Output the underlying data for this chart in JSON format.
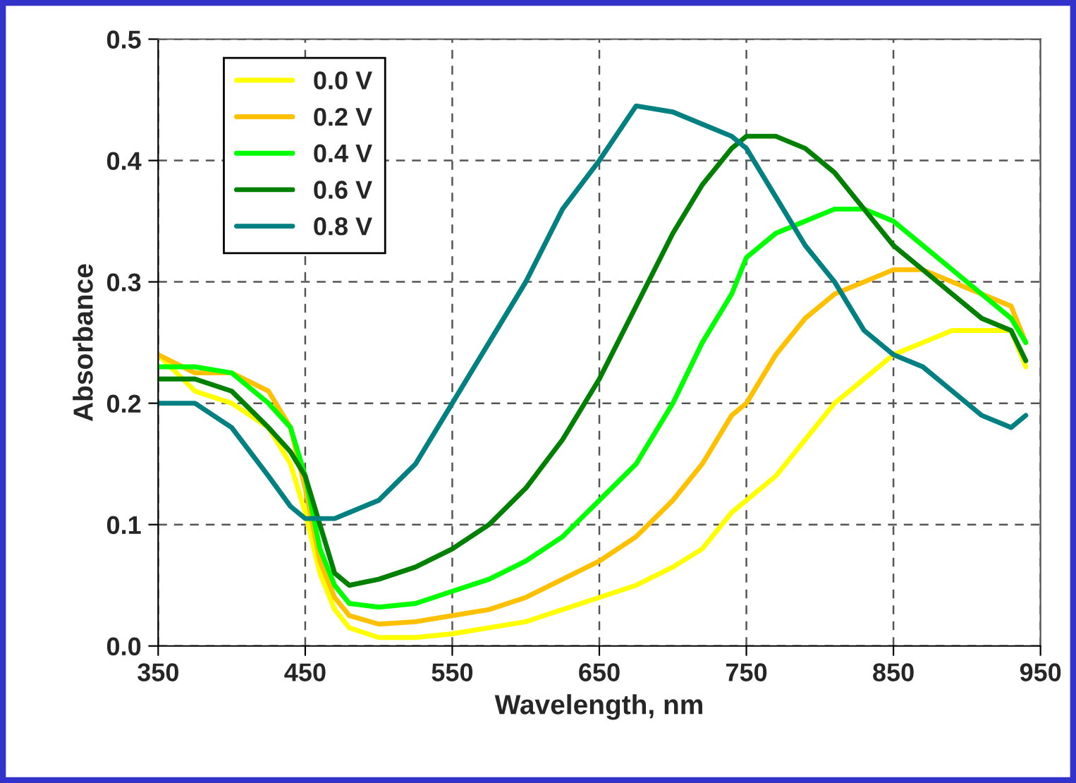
{
  "chart_data": {
    "type": "line",
    "xlabel": "Wavelength, nm",
    "ylabel": "Absorbance",
    "x": [
      350,
      375,
      400,
      425,
      440,
      450,
      460,
      470,
      480,
      500,
      525,
      550,
      575,
      600,
      625,
      650,
      675,
      700,
      720,
      740,
      750,
      770,
      790,
      810,
      830,
      850,
      870,
      890,
      910,
      930,
      940
    ],
    "series": [
      {
        "name": "0.0 V",
        "color": "#ffff00",
        "values": [
          0.24,
          0.21,
          0.2,
          0.18,
          0.15,
          0.11,
          0.06,
          0.03,
          0.015,
          0.007,
          0.007,
          0.01,
          0.015,
          0.02,
          0.03,
          0.04,
          0.05,
          0.065,
          0.08,
          0.11,
          0.12,
          0.14,
          0.17,
          0.2,
          0.22,
          0.24,
          0.25,
          0.26,
          0.26,
          0.26,
          0.23
        ]
      },
      {
        "name": "0.2 V",
        "color": "#ffc000",
        "values": [
          0.24,
          0.225,
          0.225,
          0.21,
          0.18,
          0.13,
          0.07,
          0.04,
          0.025,
          0.018,
          0.02,
          0.025,
          0.03,
          0.04,
          0.055,
          0.07,
          0.09,
          0.12,
          0.15,
          0.19,
          0.2,
          0.24,
          0.27,
          0.29,
          0.3,
          0.31,
          0.31,
          0.3,
          0.29,
          0.28,
          0.25
        ]
      },
      {
        "name": "0.4 V",
        "color": "#00ff00",
        "values": [
          0.23,
          0.23,
          0.225,
          0.2,
          0.18,
          0.14,
          0.08,
          0.05,
          0.035,
          0.032,
          0.035,
          0.045,
          0.055,
          0.07,
          0.09,
          0.12,
          0.15,
          0.2,
          0.25,
          0.29,
          0.32,
          0.34,
          0.35,
          0.36,
          0.36,
          0.35,
          0.33,
          0.31,
          0.29,
          0.27,
          0.25
        ]
      },
      {
        "name": "0.6 V",
        "color": "#008000",
        "values": [
          0.22,
          0.22,
          0.21,
          0.18,
          0.16,
          0.14,
          0.1,
          0.06,
          0.05,
          0.055,
          0.065,
          0.08,
          0.1,
          0.13,
          0.17,
          0.22,
          0.28,
          0.34,
          0.38,
          0.41,
          0.42,
          0.42,
          0.41,
          0.39,
          0.36,
          0.33,
          0.31,
          0.29,
          0.27,
          0.26,
          0.235
        ]
      },
      {
        "name": "0.8 V",
        "color": "#008080",
        "values": [
          0.2,
          0.2,
          0.18,
          0.14,
          0.115,
          0.105,
          0.105,
          0.105,
          0.11,
          0.12,
          0.15,
          0.2,
          0.25,
          0.3,
          0.36,
          0.4,
          0.445,
          0.44,
          0.43,
          0.42,
          0.41,
          0.37,
          0.33,
          0.3,
          0.26,
          0.24,
          0.23,
          0.21,
          0.19,
          0.18,
          0.19
        ]
      }
    ],
    "xlim": [
      350,
      950
    ],
    "xticks": [
      350,
      450,
      550,
      650,
      750,
      850,
      950
    ],
    "ylim": [
      0,
      0.5
    ],
    "yticks": [
      {
        "value": 0,
        "label": "0.0"
      },
      {
        "value": 0.1,
        "label": "0.1"
      },
      {
        "value": 0.2,
        "label": "0.2"
      },
      {
        "value": 0.3,
        "label": "0.3"
      },
      {
        "value": 0.4,
        "label": "0.4"
      },
      {
        "value": 0.5,
        "label": "0.5"
      }
    ],
    "grid": true,
    "legend": "top left",
    "line_style": "solid",
    "marker": "none"
  }
}
